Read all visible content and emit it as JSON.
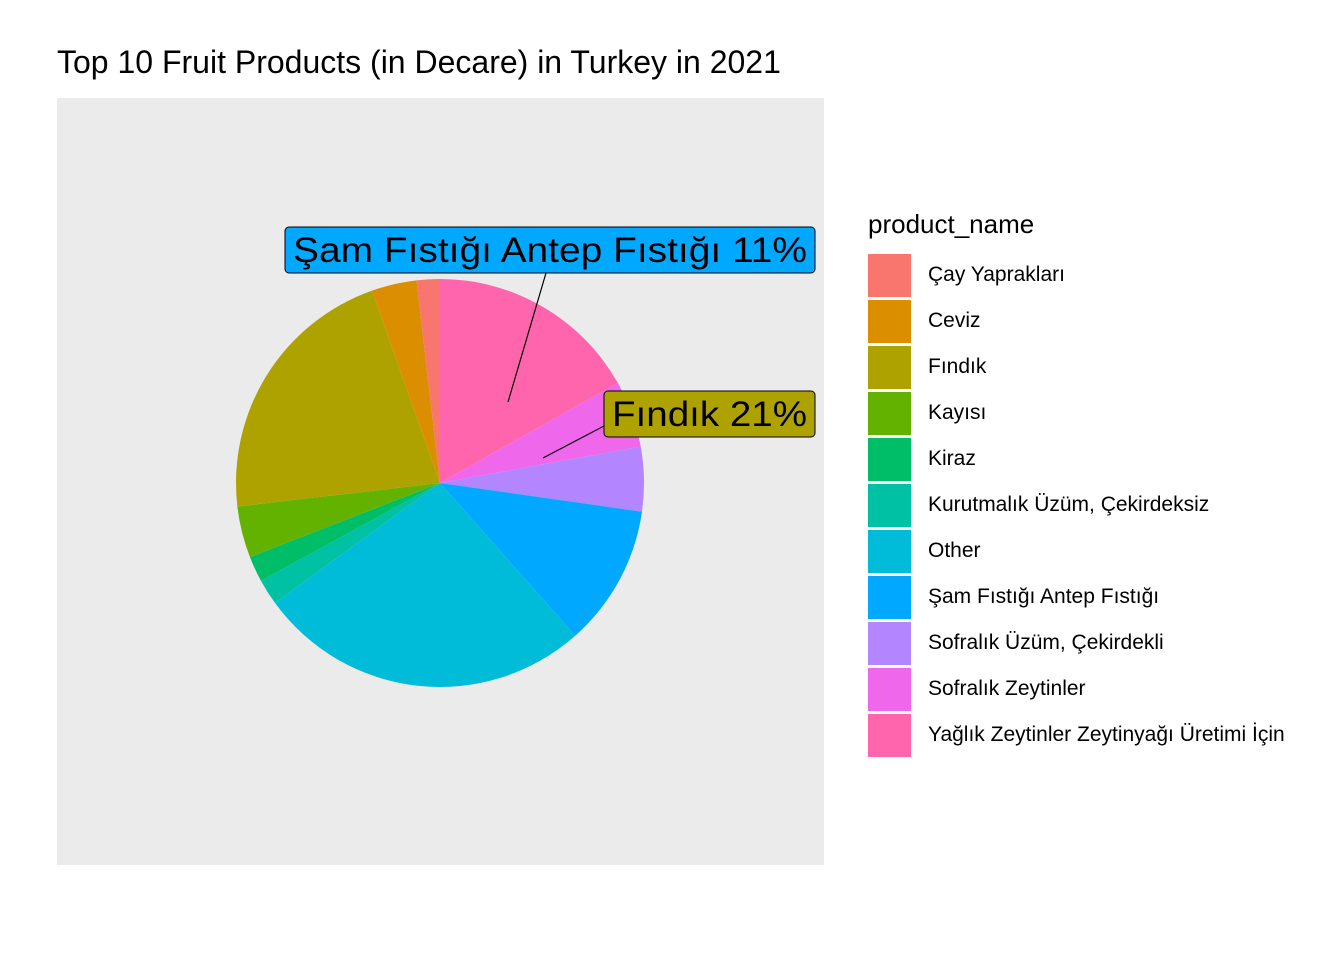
{
  "chart_data": {
    "type": "pie",
    "title": "Top 10 Fruit Products (in Decare) in Turkey in 2021",
    "legend_title": "product_name",
    "legend_position": "right",
    "slices": [
      {
        "name": "Yağlık Zeytinler Zeytinyağı Üretimi İçin",
        "share": 16.5,
        "color": "#FF65AC"
      },
      {
        "name": "Sofralık Zeytinler",
        "share": 5.2,
        "color": "#EF67EB"
      },
      {
        "name": "Sofralık Üzüm, Çekirdekli",
        "share": 5.0,
        "color": "#B385FF"
      },
      {
        "name": "Şam Fıstığı Antep Fıstığı",
        "share": 11.0,
        "color": "#00A9FF"
      },
      {
        "name": "Other",
        "share": 26.0,
        "color": "#00BCD8"
      },
      {
        "name": "Kurutmalık Üzüm, Çekirdeksiz",
        "share": 2.0,
        "color": "#00C1A3"
      },
      {
        "name": "Kiraz",
        "share": 2.0,
        "color": "#00BE67"
      },
      {
        "name": "Kayısı",
        "share": 4.0,
        "color": "#64B200"
      },
      {
        "name": "Fındık",
        "share": 21.0,
        "color": "#AEA200"
      },
      {
        "name": "Ceviz",
        "share": 3.5,
        "color": "#DB8E00"
      },
      {
        "name": "Çay Yaprakları",
        "share": 1.8,
        "color": "#F8766D"
      }
    ],
    "annotations": [
      {
        "text": "Şam Fıstığı Antep Fıstığı 11%",
        "fill": "#00A9FF"
      },
      {
        "text": "Fındık 21%",
        "fill": "#AEA200"
      }
    ],
    "legend_items": [
      {
        "label": "Çay Yaprakları",
        "color": "#F8766D"
      },
      {
        "label": "Ceviz",
        "color": "#DB8E00"
      },
      {
        "label": "Fındık",
        "color": "#AEA200"
      },
      {
        "label": "Kayısı",
        "color": "#64B200"
      },
      {
        "label": "Kiraz",
        "color": "#00BE67"
      },
      {
        "label": "Kurutmalık Üzüm, Çekirdeksiz",
        "color": "#00C1A3"
      },
      {
        "label": "Other",
        "color": "#00BCD8"
      },
      {
        "label": "Şam Fıstığı Antep Fıstığı",
        "color": "#00A9FF"
      },
      {
        "label": "Sofralık Üzüm, Çekirdekli",
        "color": "#B385FF"
      },
      {
        "label": "Sofralık Zeytinler",
        "color": "#EF67EB"
      },
      {
        "label": "Yağlık Zeytinler Zeytinyağı Üretimi İçin",
        "color": "#FF65AC"
      }
    ]
  }
}
